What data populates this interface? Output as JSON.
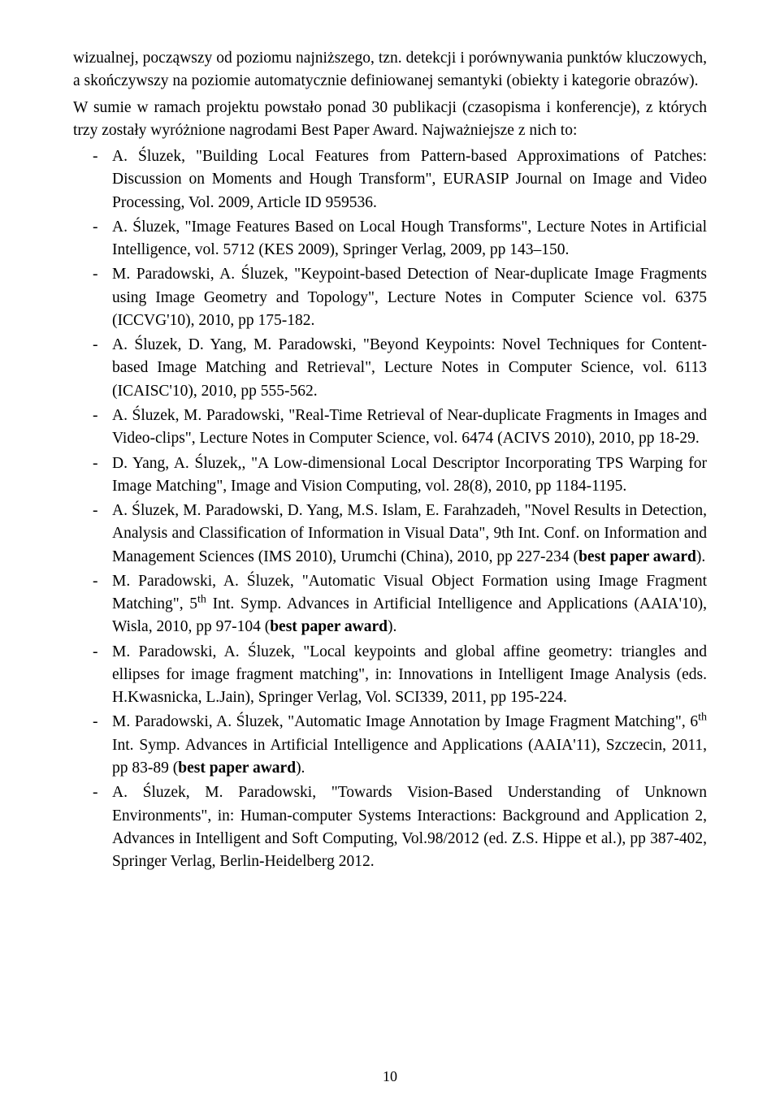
{
  "intro": {
    "p1": "wizualnej, począwszy od poziomu najniższego, tzn. detekcji i porównywania punktów kluczowych, a skończywszy na poziomie automatycznie definiowanej semantyki (obiekty i kategorie obrazów).",
    "p2": "W sumie w ramach projektu powstało ponad 30 publikacji (czasopisma i konferencje), z których trzy zostały wyróżnione nagrodami Best Paper Award. Najważniejsze z nich to:"
  },
  "items": [
    {
      "text": "A. Śluzek, \"Building Local Features from Pattern-based Approximations of Patches: Discussion on Moments and Hough Transform\", EURASIP Journal on Image and Video Processing, Vol. 2009, Article ID 959536."
    },
    {
      "text": "A. Śluzek, \"Image Features Based on Local Hough Transforms\", Lecture Notes in Artificial Intelligence, vol. 5712 (KES 2009), Springer Verlag, 2009, pp 143–150."
    },
    {
      "text": "M. Paradowski, A. Śluzek, \"Keypoint-based Detection of Near-duplicate Image Fragments using Image Geometry and Topology\", Lecture Notes in Computer Science vol. 6375 (ICCVG'10), 2010, pp 175-182."
    },
    {
      "text": "A. Śluzek, D. Yang, M. Paradowski, \"Beyond Keypoints: Novel Techniques for Content-based Image Matching and Retrieval\", Lecture Notes in Computer Science, vol. 6113 (ICAISC'10), 2010, pp 555-562."
    },
    {
      "text": "A. Śluzek, M. Paradowski, \"Real-Time Retrieval of Near-duplicate Fragments in Images and Video-clips\", Lecture Notes in Computer Science, vol. 6474 (ACIVS 2010), 2010, pp 18-29."
    },
    {
      "text": "D. Yang, A. Śluzek,, \"A Low-dimensional Local Descriptor Incorporating TPS Warping for Image Matching\", Image and Vision Computing, vol. 28(8), 2010, pp 1184-1195."
    },
    {
      "pre": "A. Śluzek, M. Paradowski, D. Yang, M.S. Islam, E. Farahzadeh, \"Novel Results in Detection, Analysis and Classification of Information in Visual Data\", 9th Int. Conf. on Information and Management Sciences (IMS 2010), Urumchi (China), 2010, pp 227-234 (",
      "bold": "best paper award",
      "post": ")."
    },
    {
      "pre": "M. Paradowski, A. Śluzek, \"Automatic Visual Object Formation using Image Fragment Matching\", 5",
      "sup": "th",
      "mid": " Int. Symp. Advances in Artificial Intelligence and Applications (AAIA'10), Wisla, 2010, pp 97-104 (",
      "bold": "best paper award",
      "post": ")."
    },
    {
      "text": "M. Paradowski, A. Śluzek, \"Local keypoints and global affine geometry: triangles and ellipses for image fragment matching\", in: Innovations in Intelligent Image Analysis (eds. H.Kwasnicka, L.Jain), Springer Verlag, Vol. SCI339, 2011, pp 195-224."
    },
    {
      "pre": "M. Paradowski, A. Śluzek, \"Automatic Image Annotation by Image Fragment Matching\", 6",
      "sup": "th",
      "mid": " Int. Symp. Advances in Artificial Intelligence and Applications (AAIA'11), Szczecin, 2011, pp 83-89 (",
      "bold": "best paper award",
      "post": ")."
    },
    {
      "text": "A. Śluzek, M. Paradowski, \"Towards Vision-Based Understanding of Unknown Environments\", in: Human-computer Systems Interactions: Background and Application 2, Advances in Intelligent and Soft Computing, Vol.98/2012 (ed. Z.S. Hippe et al.), pp 387-402, Springer Verlag, Berlin-Heidelberg 2012."
    }
  ],
  "dash": "-",
  "pagenum": "10"
}
